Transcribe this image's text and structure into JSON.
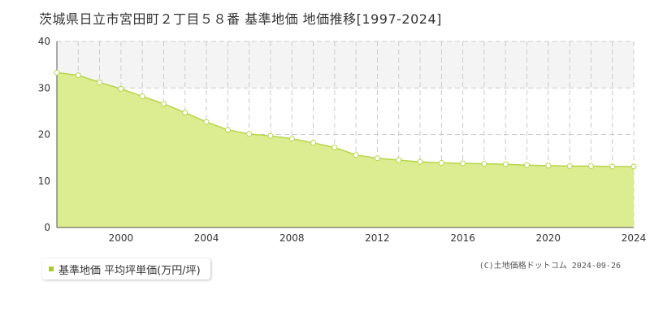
{
  "title": "茨城県日立市宮田町２丁目５８番 基準地価 地価推移[1997-2024]",
  "legend_label": "基準地価 平均坪単価(万円/坪)",
  "copyright": "(C)土地価格ドットコム 2024-09-26",
  "colors": {
    "area_fill": "#dcec90",
    "line": "#b5d64a",
    "marker_stroke": "#b5d64a",
    "marker_fill": "#ffffff",
    "band": "#f4f4f4",
    "grid": "#cccccc",
    "legend_marker": "#a7c83b"
  },
  "chart_data": {
    "type": "area",
    "title": "茨城県日立市宮田町２丁目５８番 基準地価 地価推移[1997-2024]",
    "xlabel": "",
    "ylabel": "",
    "x": [
      1997,
      1998,
      1999,
      2000,
      2001,
      2002,
      2003,
      2004,
      2005,
      2006,
      2007,
      2008,
      2009,
      2010,
      2011,
      2012,
      2013,
      2014,
      2015,
      2016,
      2017,
      2018,
      2019,
      2020,
      2021,
      2022,
      2023,
      2024
    ],
    "series": [
      {
        "name": "基準地価 平均坪単価(万円/坪)",
        "values": [
          33.3,
          32.7,
          31.2,
          29.8,
          28.2,
          26.6,
          24.7,
          22.7,
          21.0,
          20.1,
          19.7,
          19.1,
          18.2,
          17.2,
          15.6,
          14.9,
          14.5,
          14.1,
          13.9,
          13.8,
          13.7,
          13.6,
          13.4,
          13.3,
          13.2,
          13.2,
          13.1,
          13.1
        ]
      }
    ],
    "xlim": [
      1997,
      2024
    ],
    "ylim": [
      0,
      40
    ],
    "x_ticks": [
      2000,
      2004,
      2008,
      2012,
      2016,
      2020,
      2024
    ],
    "y_ticks": [
      0,
      10,
      20,
      30,
      40
    ],
    "grid": true,
    "highlight_band": [
      30,
      40
    ],
    "legend_position": "bottom-left"
  }
}
